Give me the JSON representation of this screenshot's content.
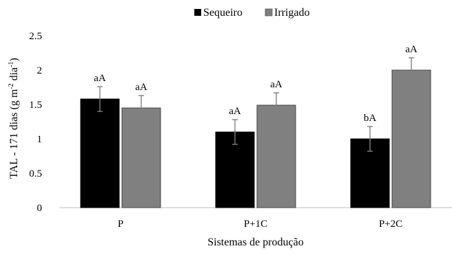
{
  "chart_data": {
    "type": "bar",
    "categories": [
      "P",
      "P+1C",
      "P+2C"
    ],
    "series": [
      {
        "name": "Sequeiro",
        "color": "#000000",
        "values": [
          1.58,
          1.1,
          1.0
        ],
        "errors": [
          0.18,
          0.18,
          0.18
        ],
        "labels": [
          "aA",
          "aA",
          "bA"
        ]
      },
      {
        "name": "Irrigado",
        "color": "#808080",
        "values": [
          1.45,
          1.49,
          2.0
        ],
        "errors": [
          0.18,
          0.18,
          0.18
        ],
        "labels": [
          "aA",
          "aA",
          "aA"
        ]
      }
    ],
    "ylim": [
      0,
      2.5
    ],
    "yticks": [
      "0",
      "0.5",
      "1",
      "1.5",
      "2",
      "2.5"
    ],
    "ytick_values": [
      0,
      0.5,
      1,
      1.5,
      2,
      2.5
    ],
    "xlabel": "Sistemas de produção",
    "ylabel_main": "TAL - 171 dias (g m",
    "ylabel_sup1": "-2",
    "ylabel_mid": " dia",
    "ylabel_sup2": "-1",
    "ylabel_end": ")",
    "legend_position": "top-center",
    "grid": false
  }
}
